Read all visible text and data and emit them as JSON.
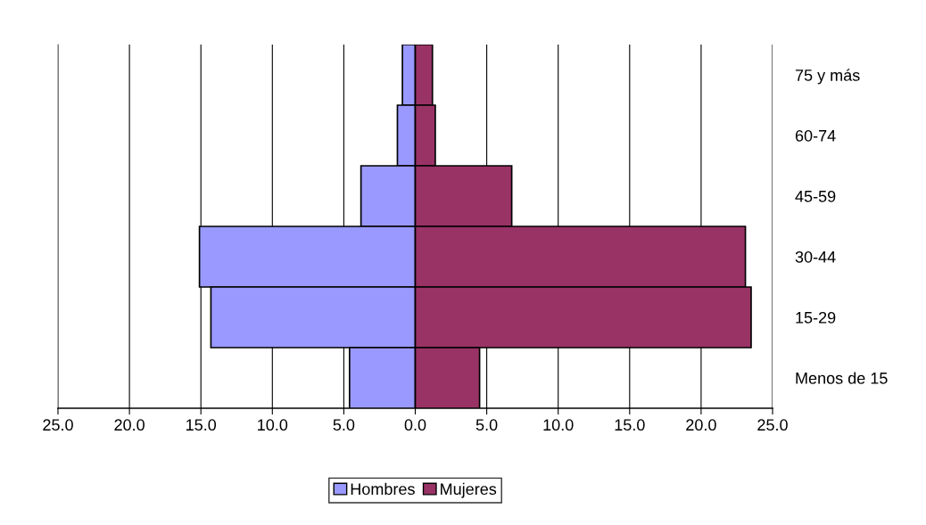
{
  "chart_data": {
    "type": "bar",
    "orientation": "horizontal",
    "categories": [
      "75 y más",
      "60-74",
      "45-59",
      "30-44",
      "15-29",
      "Menos de 15"
    ],
    "series": [
      {
        "name": "Hombres",
        "color": "#9999ff",
        "values": [
          -0.9,
          -1.25,
          -3.8,
          -15.1,
          -14.3,
          -4.6
        ]
      },
      {
        "name": "Mujeres",
        "color": "#993366",
        "values": [
          1.2,
          1.4,
          6.75,
          23.1,
          23.5,
          4.5
        ]
      }
    ],
    "xlim": [
      -25,
      25
    ],
    "xticks": [
      {
        "value": -25,
        "label": "25.0"
      },
      {
        "value": -20,
        "label": "20.0"
      },
      {
        "value": -15,
        "label": "15.0"
      },
      {
        "value": -10,
        "label": "10.0"
      },
      {
        "value": -5,
        "label": "5.0"
      },
      {
        "value": 0,
        "label": "0.0"
      },
      {
        "value": 5,
        "label": "5.0"
      },
      {
        "value": 10,
        "label": "10.0"
      },
      {
        "value": 15,
        "label": "15.0"
      },
      {
        "value": 20,
        "label": "20.0"
      },
      {
        "value": 25,
        "label": "25.0"
      }
    ],
    "stacked": true,
    "grid": "x",
    "legend": "bottom"
  }
}
